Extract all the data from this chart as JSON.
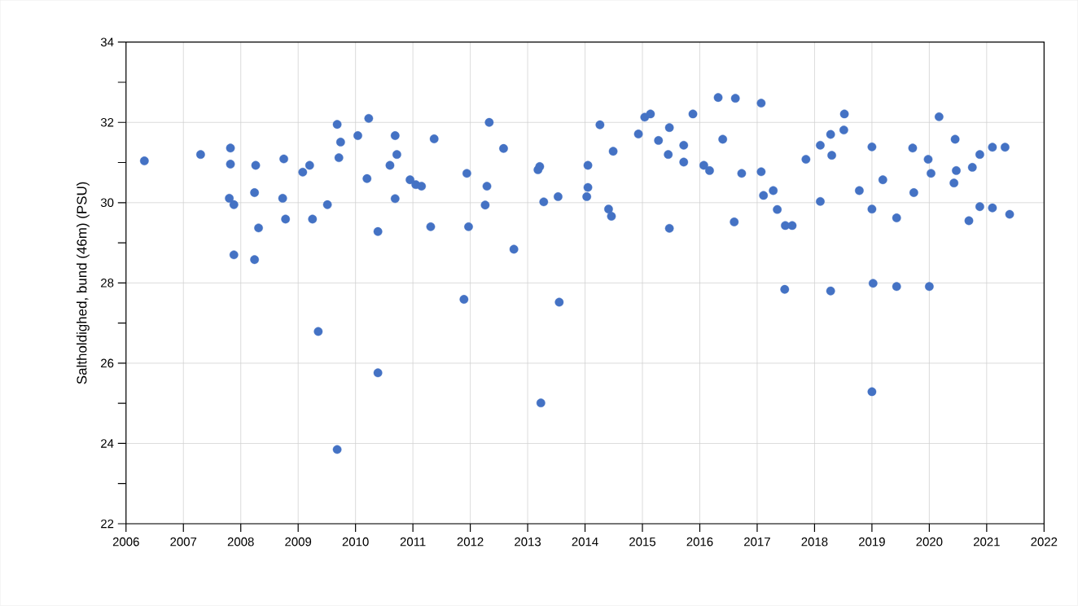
{
  "chart_data": {
    "type": "scatter",
    "ylabel": "Saltholdighed, bund (46m) (PSU)",
    "xlim": [
      2006,
      2022
    ],
    "xticks": [
      2006,
      2007,
      2008,
      2009,
      2010,
      2011,
      2012,
      2013,
      2014,
      2015,
      2016,
      2017,
      2018,
      2019,
      2020,
      2021,
      2022
    ],
    "ylim": [
      22,
      34
    ],
    "yticks": [
      22,
      24,
      26,
      28,
      30,
      32,
      34
    ],
    "grid": true,
    "marker": "circle",
    "series": [
      {
        "color": "#4472c4",
        "x": [
          2006.32,
          2007.3,
          2007.82,
          2007.82,
          2007.8,
          2007.88,
          2007.88,
          2008.24,
          2008.26,
          2008.31,
          2008.24,
          2008.75,
          2008.73,
          2008.78,
          2009.08,
          2009.2,
          2009.25,
          2009.35,
          2009.51,
          2009.68,
          2009.74,
          2009.71,
          2009.68,
          2010.04,
          2010.23,
          2010.2,
          2010.39,
          2010.39,
          2010.6,
          2010.69,
          2010.72,
          2010.69,
          2010.95,
          2011.05,
          2011.15,
          2011.31,
          2011.37,
          2011.89,
          2011.94,
          2011.97,
          2012.26,
          2012.29,
          2012.33,
          2012.58,
          2012.76,
          2013.18,
          2013.21,
          2013.23,
          2013.28,
          2013.53,
          2013.55,
          2014.03,
          2014.05,
          2014.05,
          2014.41,
          2014.46,
          2014.49,
          2014.26,
          2014.93,
          2015.04,
          2015.14,
          2015.28,
          2015.47,
          2015.45,
          2015.47,
          2015.72,
          2015.72,
          2015.88,
          2016.07,
          2016.17,
          2016.4,
          2016.32,
          2016.62,
          2016.6,
          2016.73,
          2017.07,
          2017.07,
          2017.11,
          2017.28,
          2017.35,
          2017.49,
          2017.61,
          2017.48,
          2017.85,
          2018.1,
          2018.1,
          2018.28,
          2018.3,
          2018.28,
          2018.52,
          2018.51,
          2018.78,
          2019.0,
          2019.0,
          2019.02,
          2019.0,
          2019.19,
          2019.43,
          2019.43,
          2019.71,
          2019.73,
          2019.98,
          2020.03,
          2020.0,
          2020.17,
          2020.45,
          2020.47,
          2020.43,
          2020.69,
          2020.75,
          2020.88,
          2020.88,
          2021.1,
          2021.1,
          2021.32,
          2021.4
        ],
        "values": [
          31.04,
          31.2,
          31.36,
          30.96,
          30.11,
          29.95,
          28.7,
          30.25,
          30.93,
          29.37,
          28.58,
          31.09,
          30.11,
          29.59,
          30.76,
          30.93,
          29.59,
          26.79,
          29.95,
          31.95,
          31.51,
          31.12,
          23.85,
          31.67,
          32.1,
          30.6,
          29.28,
          25.76,
          30.93,
          31.67,
          31.2,
          30.1,
          30.57,
          30.45,
          30.41,
          29.4,
          31.59,
          27.59,
          30.73,
          29.4,
          29.94,
          30.41,
          32.0,
          31.35,
          28.84,
          30.82,
          30.9,
          25.01,
          30.02,
          30.15,
          27.52,
          30.15,
          30.38,
          30.93,
          29.84,
          29.66,
          31.28,
          31.94,
          31.71,
          32.13,
          32.21,
          31.55,
          31.87,
          31.2,
          29.36,
          31.43,
          31.01,
          32.21,
          30.93,
          30.8,
          31.58,
          32.62,
          32.6,
          29.52,
          30.73,
          32.48,
          30.77,
          30.18,
          30.3,
          29.83,
          29.43,
          29.43,
          27.84,
          31.08,
          31.43,
          30.03,
          31.7,
          31.18,
          27.8,
          32.21,
          31.81,
          30.3,
          31.39,
          29.84,
          27.99,
          25.29,
          30.57,
          29.62,
          27.91,
          31.36,
          30.25,
          31.08,
          30.73,
          27.91,
          32.14,
          31.58,
          30.8,
          30.49,
          29.55,
          30.88,
          31.2,
          29.9,
          31.38,
          29.87,
          31.38,
          29.71
        ]
      }
    ]
  }
}
